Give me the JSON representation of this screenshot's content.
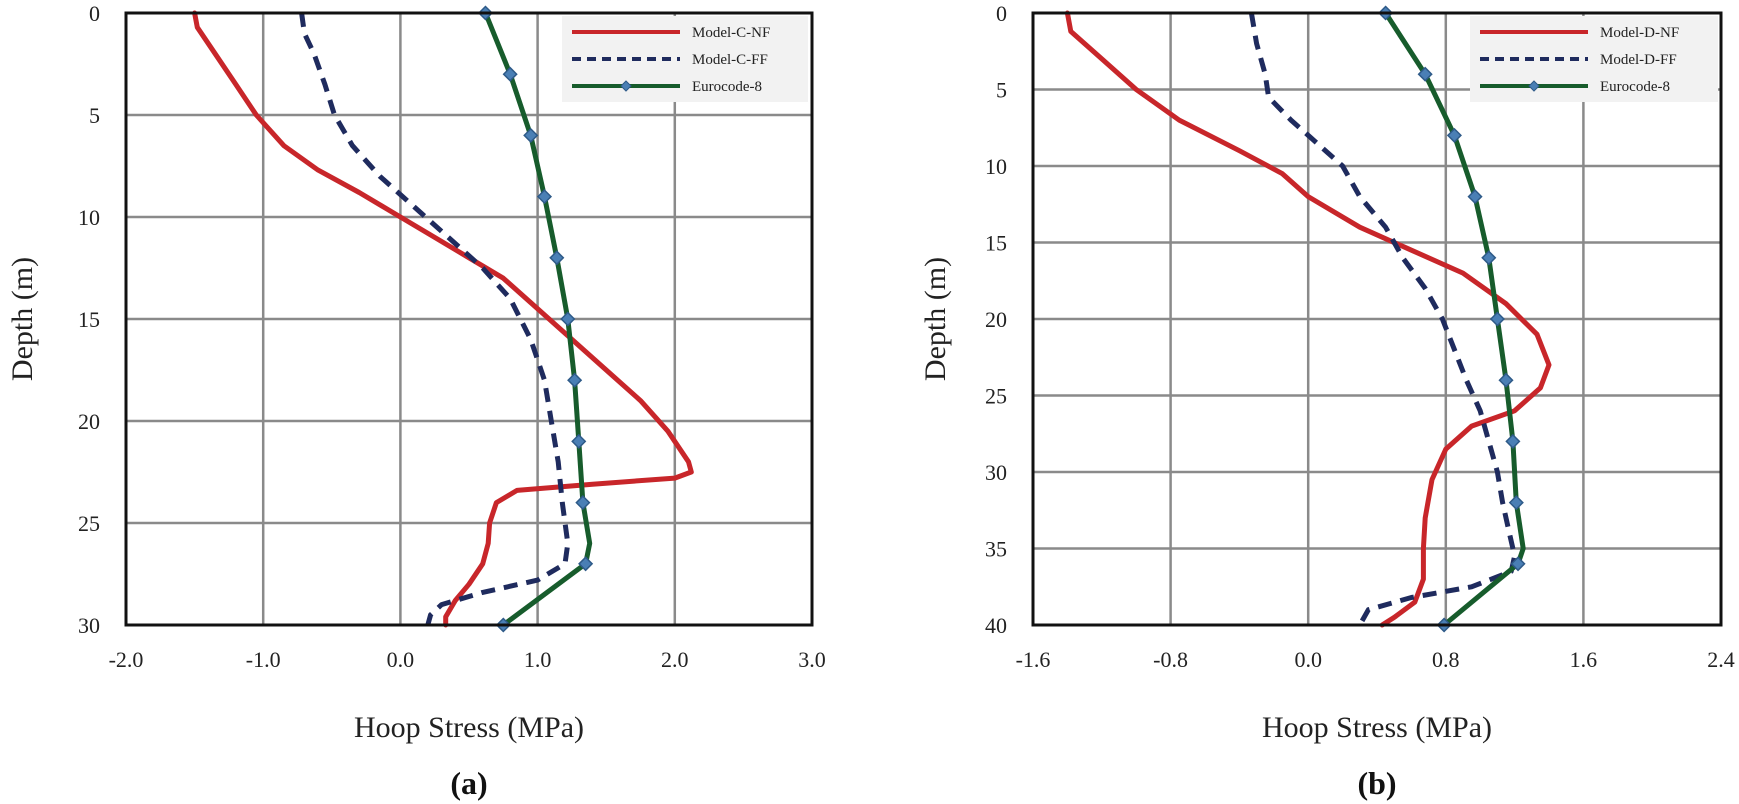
{
  "chart_data": [
    {
      "type": "line",
      "panel_label": "(a)",
      "xlabel": "Hoop Stress (MPa)",
      "ylabel": "Depth (m)",
      "xlim": [
        -2.0,
        3.0
      ],
      "ylim": [
        0,
        30
      ],
      "y_inverted": true,
      "x_ticks": [
        "-2.0",
        "-1.0",
        "0.0",
        "1.0",
        "2.0",
        "3.0"
      ],
      "y_ticks": [
        "0",
        "5",
        "10",
        "15",
        "20",
        "25",
        "30"
      ],
      "x_tick_values": [
        -2,
        -1,
        0,
        1,
        2,
        3
      ],
      "y_tick_values": [
        0,
        5,
        10,
        15,
        20,
        25,
        30
      ],
      "grid": true,
      "legend_position": "top-right",
      "series": [
        {
          "name": "Model-C-NF",
          "color": "#c8262a",
          "style": "solid",
          "marker": "none",
          "points": [
            [
              -1.5,
              0
            ],
            [
              -1.48,
              0.7
            ],
            [
              -1.35,
              2
            ],
            [
              -1.2,
              3.5
            ],
            [
              -1.05,
              5
            ],
            [
              -0.85,
              6.5
            ],
            [
              -0.6,
              7.7
            ],
            [
              -0.3,
              8.8
            ],
            [
              0.0,
              10
            ],
            [
              0.25,
              11
            ],
            [
              0.5,
              12
            ],
            [
              0.75,
              13
            ],
            [
              1.0,
              14.5
            ],
            [
              1.25,
              16
            ],
            [
              1.5,
              17.5
            ],
            [
              1.75,
              19
            ],
            [
              1.95,
              20.5
            ],
            [
              2.1,
              22
            ],
            [
              2.12,
              22.5
            ],
            [
              2.0,
              22.8
            ],
            [
              1.4,
              23.1
            ],
            [
              0.85,
              23.4
            ],
            [
              0.7,
              24
            ],
            [
              0.65,
              25
            ],
            [
              0.64,
              26
            ],
            [
              0.6,
              27
            ],
            [
              0.5,
              28
            ],
            [
              0.4,
              28.8
            ],
            [
              0.33,
              29.6
            ],
            [
              0.33,
              30
            ]
          ]
        },
        {
          "name": "Model-C-FF",
          "color": "#1f2b5e",
          "style": "dashed",
          "marker": "none",
          "points": [
            [
              -0.72,
              0
            ],
            [
              -0.7,
              1
            ],
            [
              -0.63,
              2
            ],
            [
              -0.55,
              3.5
            ],
            [
              -0.48,
              5
            ],
            [
              -0.35,
              6.5
            ],
            [
              -0.15,
              8
            ],
            [
              0.1,
              9.5
            ],
            [
              0.35,
              11
            ],
            [
              0.6,
              12.5
            ],
            [
              0.8,
              14
            ],
            [
              0.95,
              16
            ],
            [
              1.05,
              18
            ],
            [
              1.1,
              20
            ],
            [
              1.15,
              22
            ],
            [
              1.18,
              24
            ],
            [
              1.22,
              26
            ],
            [
              1.2,
              27
            ],
            [
              1.0,
              27.8
            ],
            [
              0.6,
              28.4
            ],
            [
              0.3,
              29
            ],
            [
              0.22,
              29.5
            ],
            [
              0.2,
              30
            ]
          ]
        },
        {
          "name": "Eurocode-8",
          "color": "#175c2c",
          "style": "solid",
          "marker": "diamond",
          "points": [
            [
              0.62,
              0
            ],
            [
              0.8,
              3
            ],
            [
              0.95,
              6
            ],
            [
              1.05,
              9
            ],
            [
              1.14,
              12
            ],
            [
              1.22,
              15
            ],
            [
              1.27,
              18
            ],
            [
              1.3,
              21
            ],
            [
              1.33,
              24
            ],
            [
              1.38,
              26
            ],
            [
              1.35,
              27
            ],
            [
              0.75,
              30
            ]
          ],
          "marker_points": [
            [
              0.62,
              0
            ],
            [
              0.8,
              3
            ],
            [
              0.95,
              6
            ],
            [
              1.05,
              9
            ],
            [
              1.14,
              12
            ],
            [
              1.22,
              15
            ],
            [
              1.27,
              18
            ],
            [
              1.3,
              21
            ],
            [
              1.33,
              24
            ],
            [
              1.35,
              27
            ],
            [
              0.75,
              30
            ]
          ]
        }
      ]
    },
    {
      "type": "line",
      "panel_label": "(b)",
      "xlabel": "Hoop Stress (MPa)",
      "ylabel": "Depth (m)",
      "xlim": [
        -1.6,
        2.4
      ],
      "ylim": [
        0,
        40
      ],
      "y_inverted": true,
      "x_ticks": [
        "-1.6",
        "-0.8",
        "0.0",
        "0.8",
        "1.6",
        "2.4"
      ],
      "y_ticks": [
        "0",
        "5",
        "10",
        "15",
        "20",
        "25",
        "30",
        "35",
        "40"
      ],
      "x_tick_values": [
        -1.6,
        -0.8,
        0,
        0.8,
        1.6,
        2.4
      ],
      "y_tick_values": [
        0,
        5,
        10,
        15,
        20,
        25,
        30,
        35,
        40
      ],
      "grid": true,
      "legend_position": "top-right",
      "series": [
        {
          "name": "Model-D-NF",
          "color": "#c8262a",
          "style": "solid",
          "marker": "none",
          "points": [
            [
              -1.4,
              0
            ],
            [
              -1.38,
              1.2
            ],
            [
              -1.2,
              3
            ],
            [
              -1.0,
              5
            ],
            [
              -0.75,
              7
            ],
            [
              -0.4,
              9
            ],
            [
              -0.15,
              10.5
            ],
            [
              0.0,
              12
            ],
            [
              0.3,
              14
            ],
            [
              0.6,
              15.5
            ],
            [
              0.9,
              17
            ],
            [
              1.15,
              19
            ],
            [
              1.33,
              21
            ],
            [
              1.4,
              23
            ],
            [
              1.35,
              24.5
            ],
            [
              1.2,
              26
            ],
            [
              0.95,
              27
            ],
            [
              0.8,
              28.5
            ],
            [
              0.72,
              30.5
            ],
            [
              0.68,
              33
            ],
            [
              0.67,
              35
            ],
            [
              0.67,
              37
            ],
            [
              0.62,
              38.5
            ],
            [
              0.5,
              39.5
            ],
            [
              0.43,
              40
            ]
          ]
        },
        {
          "name": "Model-D-FF",
          "color": "#1f2b5e",
          "style": "dashed",
          "marker": "none",
          "points": [
            [
              -0.33,
              0
            ],
            [
              -0.3,
              2
            ],
            [
              -0.25,
              4
            ],
            [
              -0.23,
              5.5
            ],
            [
              -0.1,
              7
            ],
            [
              0.05,
              8.5
            ],
            [
              0.2,
              10
            ],
            [
              0.3,
              12
            ],
            [
              0.45,
              14
            ],
            [
              0.55,
              16
            ],
            [
              0.68,
              18
            ],
            [
              0.78,
              20
            ],
            [
              0.85,
              22
            ],
            [
              0.92,
              24
            ],
            [
              1.0,
              26
            ],
            [
              1.05,
              28
            ],
            [
              1.1,
              30
            ],
            [
              1.13,
              32
            ],
            [
              1.17,
              34
            ],
            [
              1.2,
              35.5
            ],
            [
              1.18,
              36.5
            ],
            [
              0.95,
              37.5
            ],
            [
              0.6,
              38.2
            ],
            [
              0.35,
              39
            ],
            [
              0.3,
              40
            ]
          ]
        },
        {
          "name": "Eurocode-8",
          "color": "#175c2c",
          "style": "solid",
          "marker": "diamond",
          "points": [
            [
              0.45,
              0
            ],
            [
              0.68,
              4
            ],
            [
              0.85,
              8
            ],
            [
              0.97,
              12
            ],
            [
              1.05,
              16
            ],
            [
              1.1,
              20
            ],
            [
              1.15,
              24
            ],
            [
              1.19,
              28
            ],
            [
              1.21,
              32
            ],
            [
              1.25,
              35
            ],
            [
              1.22,
              36
            ],
            [
              0.79,
              40
            ]
          ],
          "marker_points": [
            [
              0.45,
              0
            ],
            [
              0.68,
              4
            ],
            [
              0.85,
              8
            ],
            [
              0.97,
              12
            ],
            [
              1.05,
              16
            ],
            [
              1.1,
              20
            ],
            [
              1.15,
              24
            ],
            [
              1.19,
              28
            ],
            [
              1.21,
              32
            ],
            [
              1.22,
              36
            ],
            [
              0.79,
              40
            ]
          ]
        }
      ]
    }
  ]
}
